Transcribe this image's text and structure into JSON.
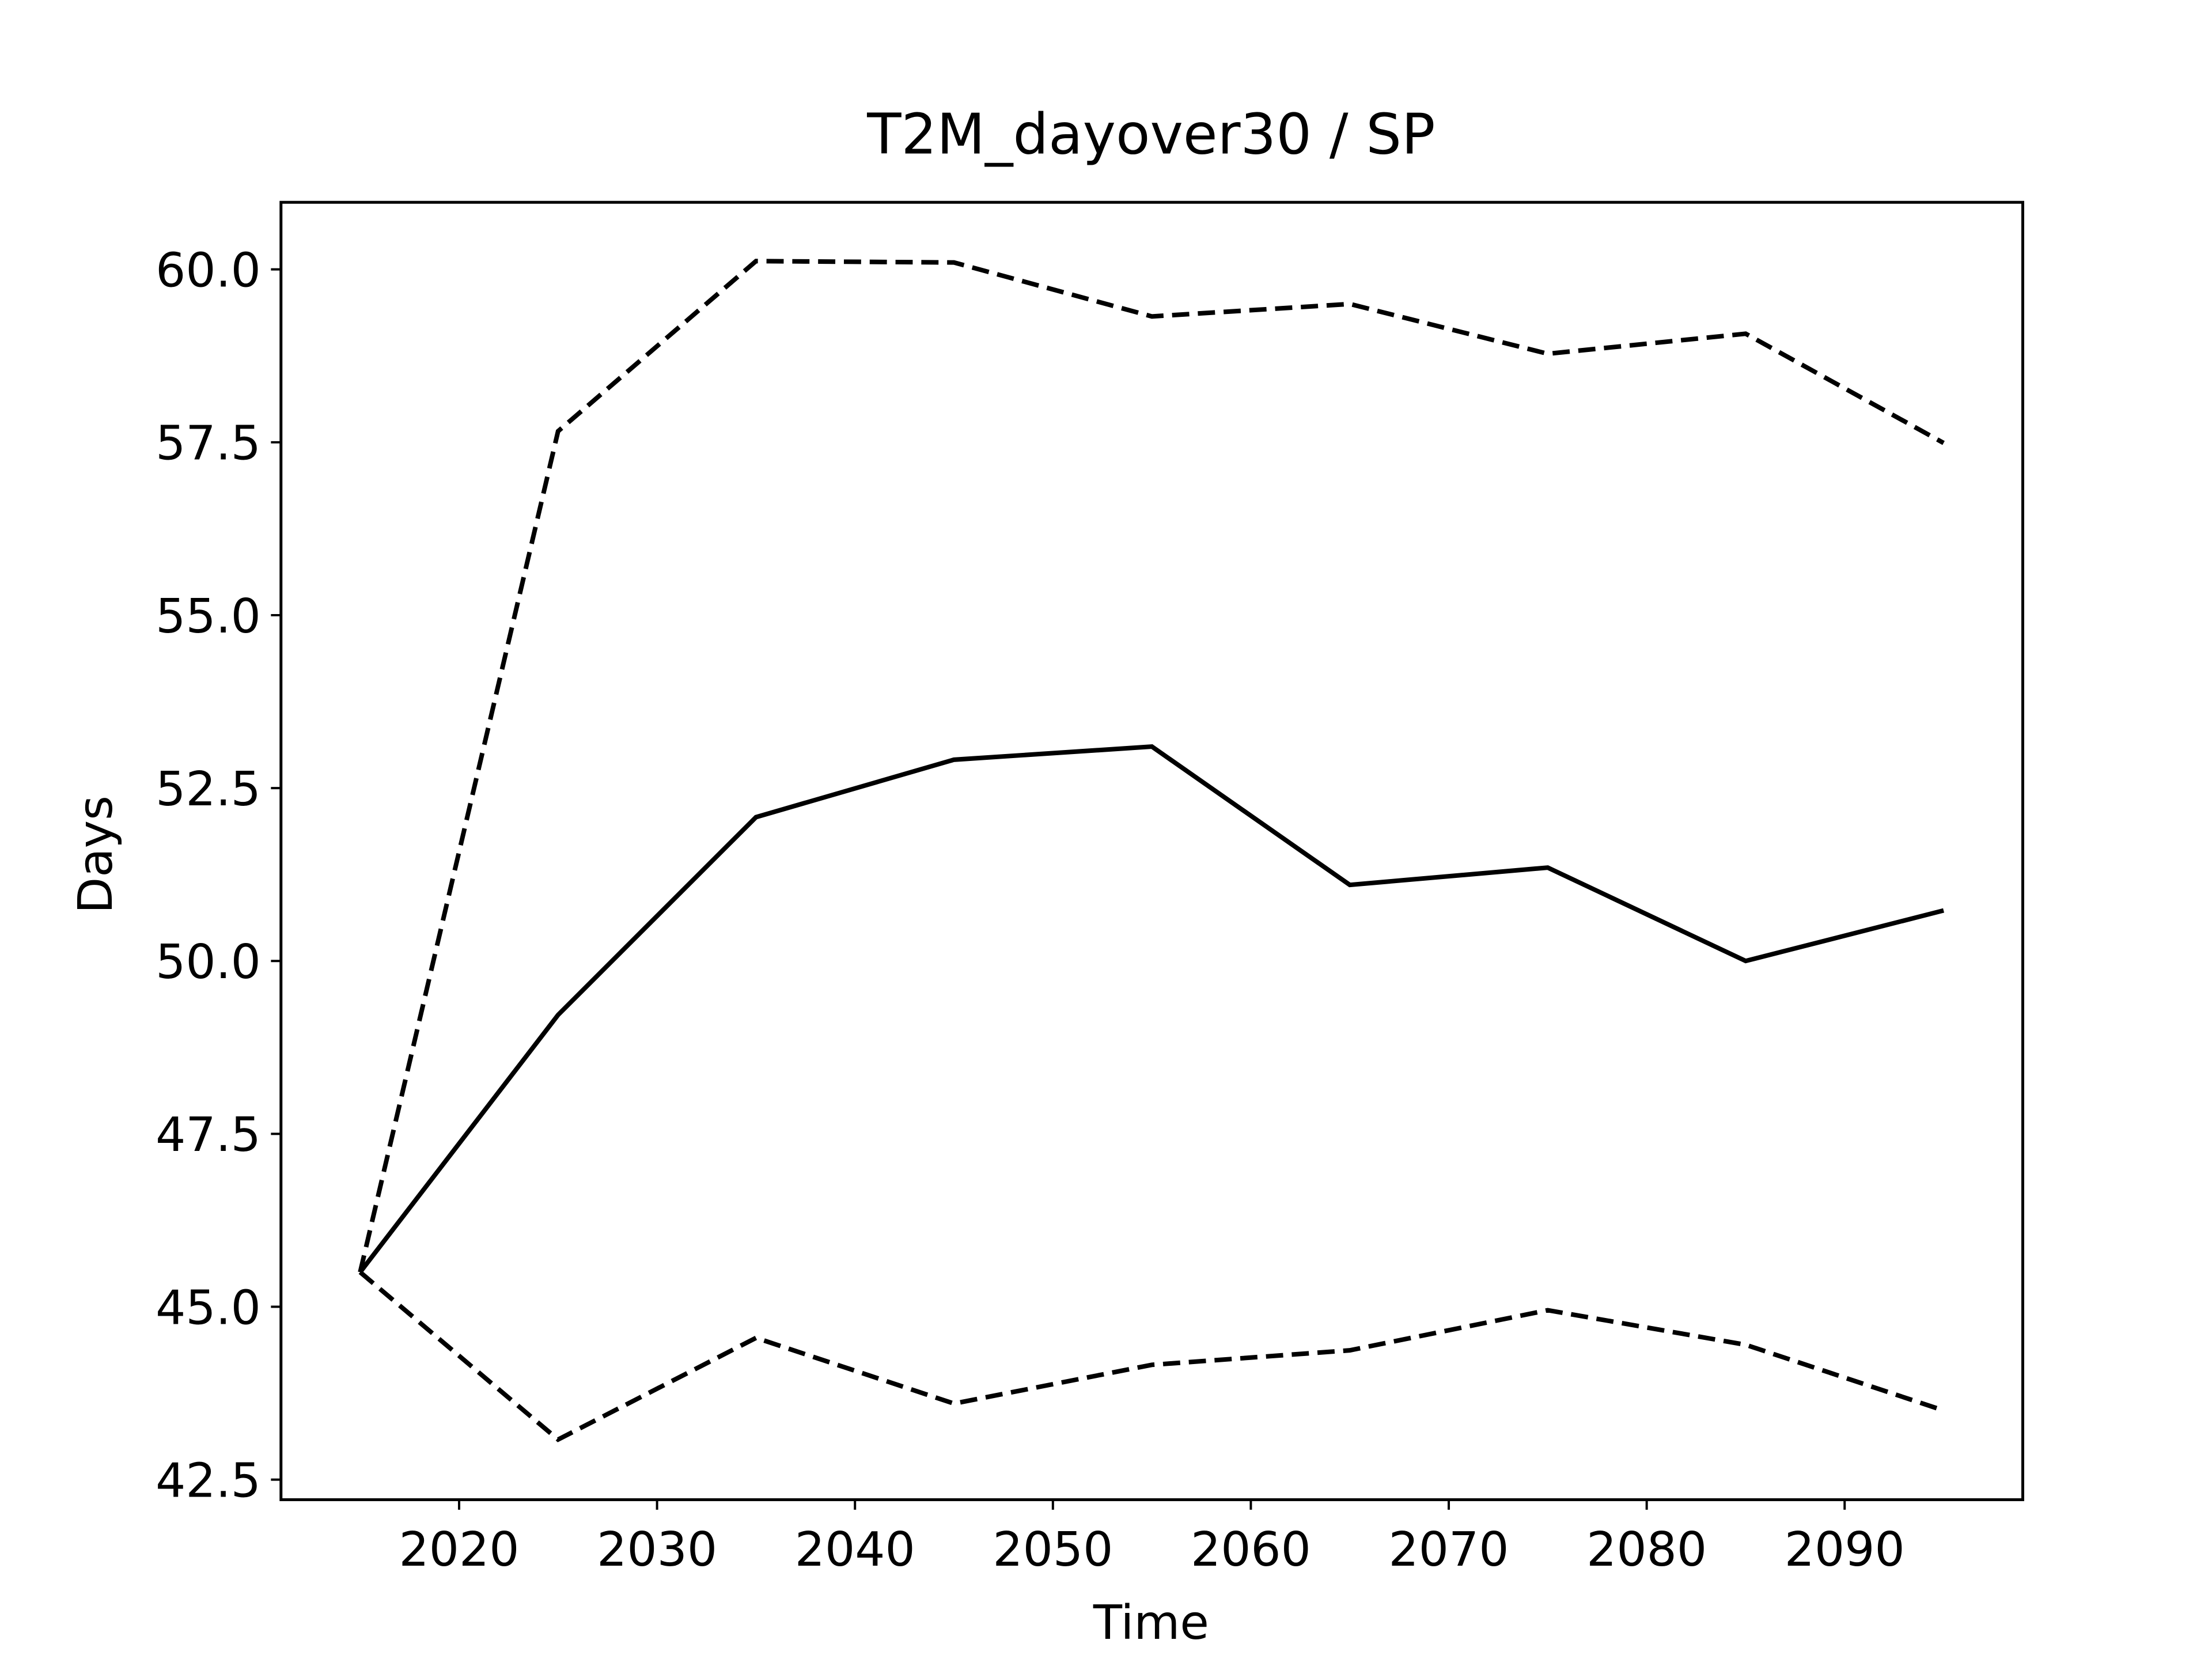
{
  "chart_data": {
    "type": "line",
    "title": "T2M_dayover30 / SP",
    "xlabel": "Time",
    "ylabel": "Days",
    "x": [
      2015,
      2025,
      2035,
      2045,
      2055,
      2065,
      2075,
      2085,
      2095
    ],
    "series": [
      {
        "color": "#000000",
        "linestyle": "solid",
        "values": [
          45.5,
          49.22,
          52.08,
          52.91,
          53.1,
          51.1,
          51.35,
          50.0,
          50.73
        ]
      },
      {
        "color": "#000000",
        "linestyle": "dashed",
        "values": [
          45.5,
          57.66,
          60.12,
          60.1,
          59.32,
          59.5,
          58.78,
          59.07,
          57.49
        ]
      },
      {
        "color": "#000000",
        "linestyle": "dashed",
        "values": [
          45.5,
          43.08,
          44.55,
          43.6,
          44.16,
          44.37,
          44.95,
          44.45,
          43.5
        ]
      }
    ],
    "xlim": [
      2011,
      2099
    ],
    "xticks": [
      2020,
      2030,
      2040,
      2050,
      2060,
      2070,
      2080,
      2090
    ],
    "ylim": [
      42.21,
      60.97
    ],
    "yticks": [
      42.5,
      {
        "value": 45,
        "label": "45.0"
      },
      47.5,
      {
        "value": 50,
        "label": "50.0"
      },
      52.5,
      {
        "value": 55,
        "label": "55.0"
      },
      57.5,
      {
        "value": 60,
        "label": "60.0"
      }
    ],
    "grid": false
  }
}
